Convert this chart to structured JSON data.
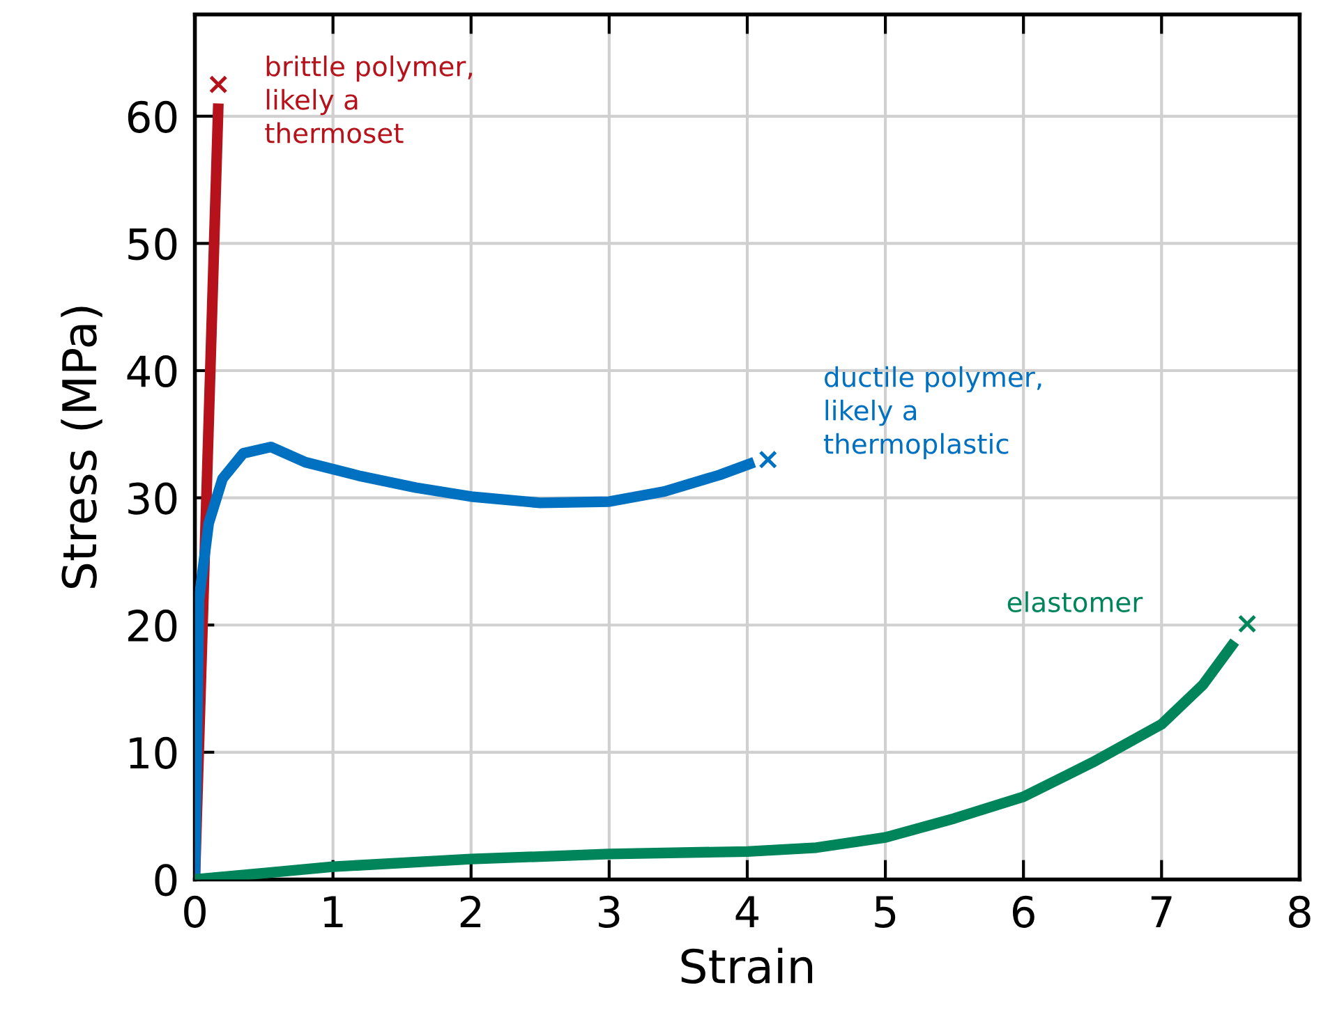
{
  "chart_data": {
    "type": "line",
    "xlabel": "Strain",
    "ylabel": "Stress (MPa)",
    "xlim": [
      0,
      8
    ],
    "ylim": [
      0,
      68
    ],
    "xticks": [
      0,
      1,
      2,
      3,
      4,
      5,
      6,
      7,
      8
    ],
    "yticks": [
      0,
      10,
      20,
      30,
      40,
      50,
      60
    ],
    "grid": true,
    "legend": false,
    "line_style": "solid",
    "series": [
      {
        "name": "brittle polymer,\nlikely a\nthermoset",
        "color": "#b5121b",
        "x": [
          0,
          0.17
        ],
        "values": [
          0,
          61
        ]
      },
      {
        "name": "ductile polymer,\nlikely a\nthermoplastic",
        "color": "#0070c0",
        "x": [
          0,
          0.03,
          0.1,
          0.2,
          0.35,
          0.55,
          0.8,
          1.2,
          1.6,
          2,
          2.5,
          3,
          3.4,
          3.8,
          4.05
        ],
        "values": [
          0,
          22,
          28,
          31.5,
          33.5,
          34,
          32.8,
          31.7,
          30.8,
          30.1,
          29.6,
          29.7,
          30.5,
          31.8,
          32.8
        ]
      },
      {
        "name": "elastomer",
        "color": "#00855a",
        "x": [
          0,
          0.5,
          1,
          2,
          3,
          4,
          4.5,
          5,
          5.5,
          6,
          6.5,
          7,
          7.3,
          7.53
        ],
        "values": [
          0,
          0.5,
          1,
          1.6,
          2,
          2.2,
          2.5,
          3.3,
          4.8,
          6.5,
          9.2,
          12.2,
          15.3,
          18.7
        ]
      },
      {
        "type": "scatter",
        "marker": "cross",
        "color": "#b5121b",
        "x": [
          0.17
        ],
        "values": [
          62.5
        ]
      },
      {
        "type": "scatter",
        "marker": "cross",
        "color": "#0070c0",
        "x": [
          4.15
        ],
        "values": [
          33
        ]
      },
      {
        "type": "scatter",
        "marker": "cross",
        "color": "#00855a",
        "x": [
          7.62
        ],
        "values": [
          20.1
        ]
      }
    ]
  }
}
